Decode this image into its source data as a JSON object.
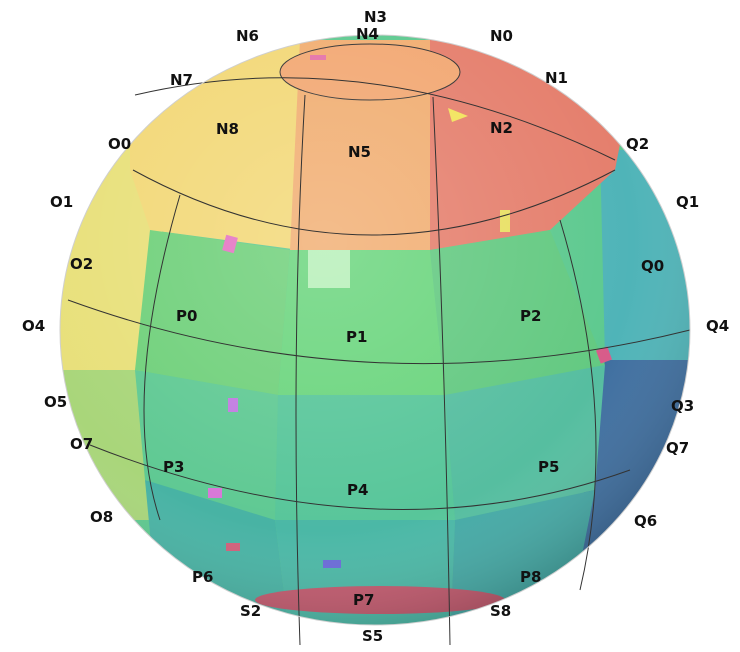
{
  "figure": {
    "outer_labels": {
      "N3": "N3",
      "N4": "N4",
      "N6": "N6",
      "N0": "N0",
      "N1": "N1",
      "N7": "N7",
      "O0": "O0",
      "Q2": "Q2",
      "O1": "O1",
      "Q1": "Q1",
      "O2": "O2",
      "Q0": "Q0",
      "O4": "O4",
      "Q4": "Q4",
      "O5": "O5",
      "Q3": "Q3",
      "O7": "O7",
      "Q7": "Q7",
      "O8": "O8",
      "Q6": "Q6",
      "P6": "P6",
      "P8": "P8",
      "S2": "S2",
      "S8": "S8",
      "S5": "S5",
      "P7": "P7"
    },
    "face_labels": {
      "N8": "N8",
      "N5": "N5",
      "N2": "N2",
      "P0": "P0",
      "P1": "P1",
      "P2": "P2",
      "P3": "P3",
      "P4": "P4",
      "P5": "P5"
    },
    "colors": {
      "north_left": "#f2d877",
      "north_mid": "#f1ae72",
      "north_right": "#e57f6d",
      "cap": "#f2a873",
      "west": "#e8e07a",
      "east": "#4fb4b8",
      "east_dark": "#3f6fa0",
      "green_top": "#6fd07a",
      "green_mid": "#5dc98f",
      "green_low": "#46b2a3",
      "south_rim": "#c25a6e",
      "outline": "#333333"
    }
  }
}
